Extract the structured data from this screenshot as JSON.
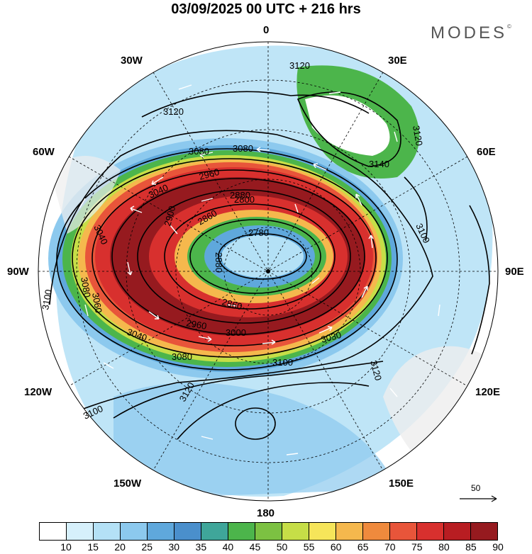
{
  "title": "03/09/2025  00 UTC  + 216 hrs",
  "brand": "MODES",
  "brand_mark": "©",
  "longitude_labels": {
    "deg0": "0",
    "deg30e": "30E",
    "deg60e": "60E",
    "deg90e": "90E",
    "deg120e": "120E",
    "deg150e": "150E",
    "deg180": "180",
    "deg150w": "150W",
    "deg120w": "120W",
    "deg90w": "90W",
    "deg60w": "60W",
    "deg30w": "30W"
  },
  "contour_labels": [
    "3120",
    "3120",
    "3120",
    "3080",
    "3080",
    "3140",
    "3100",
    "3040",
    "2960",
    "2880",
    "2860",
    "2800",
    "2780",
    "2880",
    "3040",
    "2900",
    "3100",
    "2860",
    "3000",
    "3030",
    "3040",
    "2960",
    "3080",
    "3100",
    "3120",
    "3120",
    "3100",
    "3080",
    "3060"
  ],
  "vector_reference": "50",
  "colorbar": {
    "ticks": [
      "10",
      "15",
      "20",
      "25",
      "30",
      "35",
      "40",
      "45",
      "50",
      "55",
      "60",
      "65",
      "70",
      "75",
      "80",
      "85",
      "90"
    ],
    "colors": [
      "#ffffff",
      "#d6f0fb",
      "#b4e1f6",
      "#8cc9ee",
      "#5fa8dc",
      "#4a8fcc",
      "#3fa69a",
      "#4cb54b",
      "#7cc142",
      "#c6de47",
      "#f6e55a",
      "#f5b84d",
      "#ef8a3d",
      "#e8553a",
      "#d8302e",
      "#b81d22",
      "#961a1f"
    ]
  }
}
